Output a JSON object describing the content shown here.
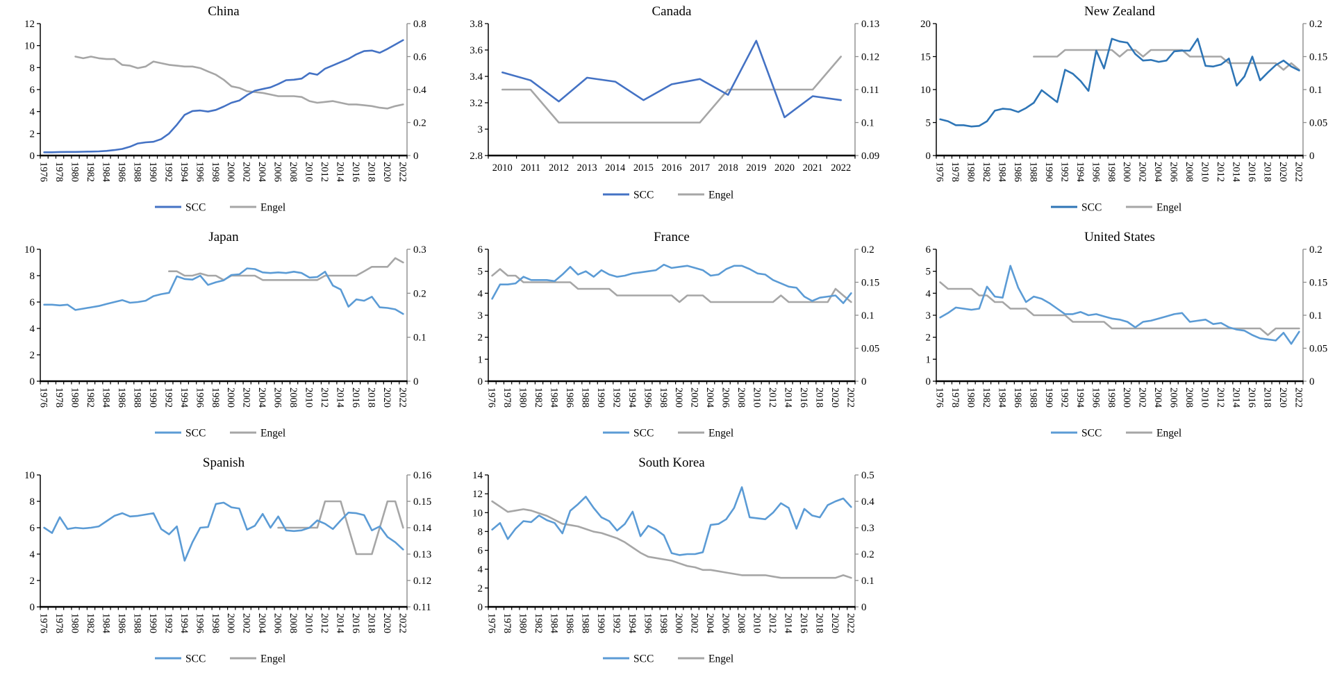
{
  "figure": {
    "background": "#ffffff",
    "engel_color": "#A6A6A6",
    "axis_color": "#000000",
    "right_axis_color": "#8C8C8C"
  },
  "legend": {
    "scc_label": "SCC",
    "engel_label": "Engel"
  },
  "chart_data": [
    {
      "type": "line",
      "slug": "china",
      "title": "China",
      "x": {
        "start": 1976,
        "end": 2022,
        "label_every": 2,
        "rotated": true
      },
      "left_axis": {
        "min": 0,
        "max": 12,
        "ticks": [
          0,
          2,
          4,
          6,
          8,
          10,
          12
        ]
      },
      "right_axis": {
        "min": 0,
        "max": 0.8,
        "ticks": [
          0,
          0.2,
          0.4,
          0.6,
          0.8
        ]
      },
      "scc_color": "#4472C4",
      "series": [
        {
          "name": "SCC",
          "axis": "left",
          "values": [
            0.3,
            0.3,
            0.32,
            0.33,
            0.33,
            0.35,
            0.36,
            0.38,
            0.42,
            0.5,
            0.6,
            0.8,
            1.1,
            1.2,
            1.25,
            1.5,
            2.0,
            2.8,
            3.7,
            4.05,
            4.1,
            4.0,
            4.15,
            4.45,
            4.8,
            5.0,
            5.5,
            5.9,
            6.05,
            6.2,
            6.5,
            6.85,
            6.9,
            7.0,
            7.5,
            7.35,
            7.9,
            8.2,
            8.5,
            8.8,
            9.2,
            9.5,
            9.55,
            9.35,
            9.7,
            10.1,
            10.5
          ]
        },
        {
          "name": "Engel",
          "axis": "right",
          "values": [
            null,
            null,
            null,
            null,
            0.6,
            0.59,
            0.6,
            0.59,
            0.585,
            0.585,
            0.55,
            0.545,
            0.53,
            0.54,
            0.57,
            0.56,
            0.55,
            0.545,
            0.54,
            0.54,
            0.53,
            0.51,
            0.49,
            0.46,
            0.42,
            0.41,
            0.39,
            0.385,
            0.38,
            0.37,
            0.36,
            0.36,
            0.36,
            0.355,
            0.33,
            0.32,
            0.325,
            0.33,
            0.32,
            0.31,
            0.31,
            0.305,
            0.3,
            0.29,
            0.285,
            0.3,
            0.31
          ]
        }
      ]
    },
    {
      "type": "line",
      "slug": "canada",
      "title": "Canada",
      "x": {
        "start": 2010,
        "end": 2022,
        "label_every": 1,
        "rotated": false
      },
      "left_axis": {
        "min": 2.8,
        "max": 3.8,
        "ticks": [
          2.8,
          3,
          3.2,
          3.4,
          3.6,
          3.8
        ]
      },
      "right_axis": {
        "min": 0.09,
        "max": 0.13,
        "ticks": [
          0.09,
          0.1,
          0.11,
          0.12,
          0.13
        ]
      },
      "scc_color": "#4472C4",
      "series": [
        {
          "name": "SCC",
          "axis": "left",
          "values": [
            3.43,
            3.37,
            3.21,
            3.39,
            3.36,
            3.22,
            3.34,
            3.38,
            3.26,
            3.67,
            3.09,
            3.25,
            3.22
          ]
        },
        {
          "name": "Engel",
          "axis": "right",
          "values": [
            0.11,
            0.11,
            0.1,
            0.1,
            0.1,
            0.1,
            0.1,
            0.1,
            0.11,
            0.11,
            0.11,
            0.11,
            0.12
          ]
        }
      ]
    },
    {
      "type": "line",
      "slug": "new-zealand",
      "title": "New Zealand",
      "x": {
        "start": 1976,
        "end": 2022,
        "label_every": 2,
        "rotated": true
      },
      "left_axis": {
        "min": 0,
        "max": 20,
        "ticks": [
          0,
          5,
          10,
          15,
          20
        ]
      },
      "right_axis": {
        "min": 0,
        "max": 0.2,
        "ticks": [
          0,
          0.05,
          0.1,
          0.15,
          0.2
        ]
      },
      "scc_color": "#2E75B6",
      "series": [
        {
          "name": "SCC",
          "axis": "left",
          "values": [
            5.5,
            5.2,
            4.6,
            4.6,
            4.4,
            4.5,
            5.2,
            6.8,
            7.1,
            7.0,
            6.6,
            7.2,
            8.0,
            9.9,
            9.0,
            8.1,
            13.0,
            12.4,
            11.3,
            9.8,
            15.9,
            13.2,
            17.7,
            17.3,
            17.1,
            15.4,
            14.4,
            14.5,
            14.2,
            14.4,
            15.8,
            15.9,
            15.9,
            17.7,
            13.6,
            13.5,
            13.8,
            14.7,
            10.6,
            12.0,
            15.0,
            11.4,
            12.6,
            13.7,
            14.4,
            13.5,
            12.9
          ]
        },
        {
          "name": "Engel",
          "axis": "right",
          "values": [
            null,
            null,
            null,
            null,
            null,
            null,
            null,
            null,
            null,
            null,
            null,
            null,
            0.15,
            0.15,
            0.15,
            0.15,
            0.16,
            0.16,
            0.16,
            0.16,
            0.16,
            0.16,
            0.16,
            0.15,
            0.16,
            0.16,
            0.15,
            0.16,
            0.16,
            0.16,
            0.16,
            0.16,
            0.15,
            0.15,
            0.15,
            0.15,
            0.15,
            0.14,
            0.14,
            0.14,
            0.14,
            0.14,
            0.14,
            0.14,
            0.13,
            0.14,
            0.13
          ]
        }
      ]
    },
    {
      "type": "line",
      "slug": "japan",
      "title": "Japan",
      "x": {
        "start": 1976,
        "end": 2022,
        "label_every": 2,
        "rotated": true
      },
      "left_axis": {
        "min": 0,
        "max": 10,
        "ticks": [
          0,
          2,
          4,
          6,
          8,
          10
        ]
      },
      "right_axis": {
        "min": 0,
        "max": 0.3,
        "ticks": [
          0,
          0.1,
          0.2,
          0.3
        ]
      },
      "scc_color": "#5B9BD5",
      "series": [
        {
          "name": "SCC",
          "axis": "left",
          "values": [
            5.8,
            5.8,
            5.75,
            5.8,
            5.4,
            5.5,
            5.6,
            5.7,
            5.85,
            6.0,
            6.15,
            5.95,
            6.0,
            6.1,
            6.45,
            6.6,
            6.7,
            7.95,
            7.75,
            7.7,
            8.0,
            7.3,
            7.5,
            7.65,
            8.05,
            8.1,
            8.55,
            8.5,
            8.25,
            8.2,
            8.25,
            8.2,
            8.3,
            8.2,
            7.85,
            7.9,
            8.3,
            7.25,
            6.95,
            5.65,
            6.2,
            6.1,
            6.4,
            5.6,
            5.55,
            5.45,
            5.1
          ]
        },
        {
          "name": "Engel",
          "axis": "right",
          "values": [
            null,
            null,
            null,
            null,
            null,
            null,
            null,
            null,
            null,
            null,
            null,
            null,
            null,
            null,
            null,
            null,
            0.25,
            0.25,
            0.24,
            0.24,
            0.245,
            0.24,
            0.24,
            0.23,
            0.24,
            0.24,
            0.24,
            0.24,
            0.23,
            0.23,
            0.23,
            0.23,
            0.23,
            0.23,
            0.23,
            0.23,
            0.24,
            0.24,
            0.24,
            0.24,
            0.24,
            0.25,
            0.26,
            0.26,
            0.26,
            0.28,
            0.27
          ]
        }
      ]
    },
    {
      "type": "line",
      "slug": "france",
      "title": "France",
      "x": {
        "start": 1976,
        "end": 2022,
        "label_every": 2,
        "rotated": true
      },
      "left_axis": {
        "min": 0,
        "max": 6,
        "ticks": [
          0,
          1,
          2,
          3,
          4,
          5,
          6
        ]
      },
      "right_axis": {
        "min": 0,
        "max": 0.2,
        "ticks": [
          0,
          0.05,
          0.1,
          0.15,
          0.2
        ]
      },
      "scc_color": "#5B9BD5",
      "series": [
        {
          "name": "SCC",
          "axis": "left",
          "values": [
            3.75,
            4.4,
            4.4,
            4.45,
            4.75,
            4.6,
            4.6,
            4.6,
            4.55,
            4.85,
            5.2,
            4.85,
            5.0,
            4.75,
            5.05,
            4.85,
            4.75,
            4.8,
            4.9,
            4.95,
            5.0,
            5.05,
            5.3,
            5.15,
            5.2,
            5.25,
            5.15,
            5.05,
            4.8,
            4.85,
            5.1,
            5.25,
            5.25,
            5.1,
            4.9,
            4.85,
            4.6,
            4.45,
            4.3,
            4.25,
            3.85,
            3.65,
            3.8,
            3.85,
            3.9,
            3.55,
            4.0
          ]
        },
        {
          "name": "Engel",
          "axis": "right",
          "values": [
            0.16,
            0.17,
            0.16,
            0.16,
            0.15,
            0.15,
            0.15,
            0.15,
            0.15,
            0.15,
            0.15,
            0.14,
            0.14,
            0.14,
            0.14,
            0.14,
            0.13,
            0.13,
            0.13,
            0.13,
            0.13,
            0.13,
            0.13,
            0.13,
            0.12,
            0.13,
            0.13,
            0.13,
            0.12,
            0.12,
            0.12,
            0.12,
            0.12,
            0.12,
            0.12,
            0.12,
            0.12,
            0.13,
            0.12,
            0.12,
            0.12,
            0.12,
            0.12,
            0.12,
            0.14,
            0.13,
            0.12
          ]
        }
      ]
    },
    {
      "type": "line",
      "slug": "united-states",
      "title": "United States",
      "x": {
        "start": 1976,
        "end": 2022,
        "label_every": 2,
        "rotated": true
      },
      "left_axis": {
        "min": 0,
        "max": 6,
        "ticks": [
          0,
          1,
          2,
          3,
          4,
          5,
          6
        ]
      },
      "right_axis": {
        "min": 0,
        "max": 0.2,
        "ticks": [
          0,
          0.05,
          0.1,
          0.15,
          0.2
        ]
      },
      "scc_color": "#5B9BD5",
      "series": [
        {
          "name": "SCC",
          "axis": "left",
          "values": [
            2.9,
            3.1,
            3.35,
            3.3,
            3.25,
            3.3,
            4.3,
            3.85,
            3.8,
            5.25,
            4.25,
            3.6,
            3.85,
            3.75,
            3.55,
            3.3,
            3.05,
            3.05,
            3.15,
            3.0,
            3.05,
            2.95,
            2.85,
            2.8,
            2.7,
            2.45,
            2.7,
            2.75,
            2.85,
            2.95,
            3.05,
            3.1,
            2.7,
            2.75,
            2.8,
            2.6,
            2.65,
            2.45,
            2.35,
            2.3,
            2.1,
            1.95,
            1.9,
            1.85,
            2.2,
            1.7,
            2.25
          ]
        },
        {
          "name": "Engel",
          "axis": "right",
          "values": [
            0.15,
            0.14,
            0.14,
            0.14,
            0.14,
            0.13,
            0.13,
            0.12,
            0.12,
            0.11,
            0.11,
            0.11,
            0.1,
            0.1,
            0.1,
            0.1,
            0.1,
            0.09,
            0.09,
            0.09,
            0.09,
            0.09,
            0.08,
            0.08,
            0.08,
            0.08,
            0.08,
            0.08,
            0.08,
            0.08,
            0.08,
            0.08,
            0.08,
            0.08,
            0.08,
            0.08,
            0.08,
            0.08,
            0.08,
            0.08,
            0.08,
            0.08,
            0.07,
            0.08,
            0.08,
            0.08,
            0.08
          ]
        }
      ]
    },
    {
      "type": "line",
      "slug": "spanish",
      "title": "Spanish",
      "x": {
        "start": 1976,
        "end": 2022,
        "label_every": 2,
        "rotated": true
      },
      "left_axis": {
        "min": 0,
        "max": 10,
        "ticks": [
          0,
          2,
          4,
          6,
          8,
          10
        ]
      },
      "right_axis": {
        "min": 0.11,
        "max": 0.16,
        "ticks": [
          0.11,
          0.12,
          0.13,
          0.14,
          0.15,
          0.16
        ]
      },
      "scc_color": "#5B9BD5",
      "series": [
        {
          "name": "SCC",
          "axis": "left",
          "values": [
            6.0,
            5.6,
            6.8,
            5.9,
            6.0,
            5.95,
            6.0,
            6.1,
            6.5,
            6.9,
            7.1,
            6.85,
            6.9,
            7.0,
            7.1,
            5.9,
            5.5,
            6.1,
            3.5,
            4.9,
            6.0,
            6.05,
            7.8,
            7.9,
            7.55,
            7.45,
            5.85,
            6.15,
            7.05,
            6.0,
            6.85,
            5.8,
            5.75,
            5.8,
            6.0,
            6.55,
            6.3,
            5.9,
            6.55,
            7.15,
            7.1,
            6.95,
            5.8,
            6.1,
            5.3,
            4.9,
            4.35
          ]
        },
        {
          "name": "Engel",
          "axis": "right",
          "values": [
            null,
            null,
            null,
            null,
            null,
            null,
            null,
            null,
            null,
            null,
            null,
            null,
            null,
            null,
            null,
            null,
            null,
            null,
            null,
            null,
            null,
            null,
            null,
            null,
            null,
            null,
            null,
            null,
            null,
            null,
            0.14,
            0.14,
            0.14,
            0.14,
            0.14,
            0.14,
            0.15,
            0.15,
            0.15,
            0.14,
            0.13,
            0.13,
            0.13,
            0.14,
            0.15,
            0.15,
            0.14
          ]
        }
      ]
    },
    {
      "type": "line",
      "slug": "south-korea",
      "title": "South Korea",
      "x": {
        "start": 1976,
        "end": 2022,
        "label_every": 2,
        "rotated": true
      },
      "left_axis": {
        "min": 0,
        "max": 14,
        "ticks": [
          0,
          2,
          4,
          6,
          8,
          10,
          12,
          14
        ]
      },
      "right_axis": {
        "min": 0,
        "max": 0.5,
        "ticks": [
          0,
          0.1,
          0.2,
          0.3,
          0.4,
          0.5
        ]
      },
      "scc_color": "#5B9BD5",
      "series": [
        {
          "name": "SCC",
          "axis": "left",
          "values": [
            8.2,
            8.9,
            7.2,
            8.3,
            9.1,
            9.0,
            9.7,
            9.2,
            8.9,
            7.8,
            10.2,
            10.9,
            11.7,
            10.5,
            9.5,
            9.1,
            8.1,
            8.8,
            10.1,
            7.5,
            8.6,
            8.2,
            7.6,
            5.7,
            5.5,
            5.6,
            5.6,
            5.8,
            8.7,
            8.8,
            9.3,
            10.5,
            12.7,
            9.5,
            9.4,
            9.3,
            10.0,
            11.0,
            10.5,
            8.3,
            10.4,
            9.7,
            9.5,
            10.8,
            11.2,
            11.5,
            10.6
          ]
        },
        {
          "name": "Engel",
          "axis": "right",
          "values": [
            0.4,
            0.38,
            0.36,
            0.365,
            0.37,
            0.365,
            0.355,
            0.345,
            0.33,
            0.315,
            0.31,
            0.305,
            0.295,
            0.285,
            0.28,
            0.27,
            0.26,
            0.245,
            0.225,
            0.205,
            0.19,
            0.185,
            0.18,
            0.175,
            0.165,
            0.155,
            0.15,
            0.14,
            0.14,
            0.135,
            0.13,
            0.125,
            0.12,
            0.12,
            0.12,
            0.12,
            0.115,
            0.11,
            0.11,
            0.11,
            0.11,
            0.11,
            0.11,
            0.11,
            0.11,
            0.12,
            0.11
          ]
        }
      ]
    }
  ]
}
